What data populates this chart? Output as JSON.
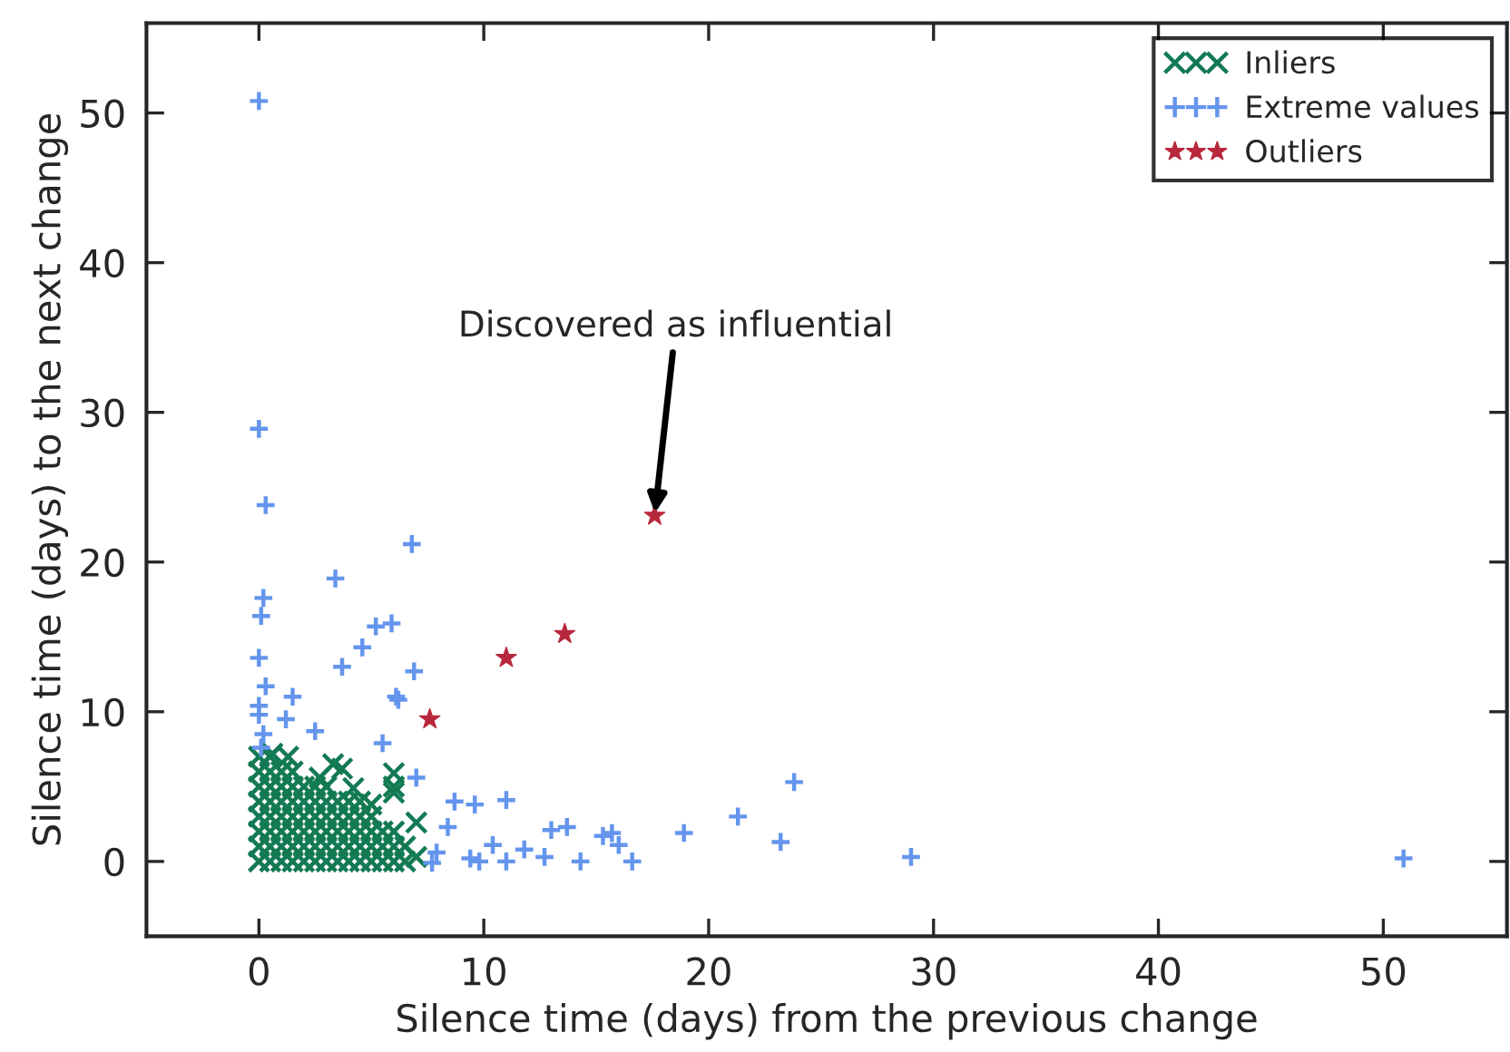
{
  "chart_data": {
    "type": "scatter",
    "xlabel": "Silence time (days) from the previous change",
    "ylabel": "Silence time (days) to the next change",
    "xlim": [
      -5,
      55.5
    ],
    "ylim": [
      -5,
      56
    ],
    "xticks": [
      0,
      10,
      20,
      30,
      40,
      50
    ],
    "yticks": [
      0,
      10,
      20,
      30,
      40,
      50
    ],
    "grid": false,
    "legend": "top right",
    "annotations": [
      {
        "text": "Discovered as influential",
        "x": 17.6,
        "y": 23.1
      }
    ],
    "series": [
      {
        "name": "Inliers",
        "color": "#137a54",
        "marker": "cross",
        "x": [
          0,
          0.5,
          1,
          1.5,
          2,
          2.5,
          3,
          3.5,
          4,
          4.5,
          5,
          5.5,
          6,
          6.5,
          7,
          0,
          0.5,
          1,
          1.5,
          2,
          2.5,
          3,
          3.5,
          4,
          4.5,
          5,
          5.5,
          6,
          6.5,
          0,
          0.5,
          1,
          1.5,
          2,
          2.5,
          3,
          3.5,
          4,
          4.5,
          5,
          5.5,
          6,
          0,
          0.5,
          1,
          1.5,
          2,
          2.5,
          3,
          3.5,
          4,
          4.5,
          5,
          0,
          0.5,
          1,
          1.5,
          2,
          2.5,
          3,
          3.5,
          4,
          4.5,
          0,
          0.5,
          1,
          1.5,
          2,
          2.5,
          3,
          0,
          0.5,
          1,
          1.5,
          0,
          0.5,
          3.3,
          3.7,
          6,
          6,
          6,
          7,
          1.3,
          0.6,
          2.7,
          4.2,
          5
        ],
        "values": [
          0,
          0,
          0,
          0,
          0,
          0,
          0,
          0,
          0,
          0,
          0,
          0,
          0,
          0,
          0.3,
          1,
          1,
          1,
          1,
          1,
          1,
          1,
          1,
          1,
          1,
          1,
          1,
          1,
          1,
          2,
          2,
          2,
          2,
          2,
          2,
          2,
          2,
          2,
          2,
          2,
          2,
          2,
          3,
          3,
          3,
          3,
          3,
          3,
          3,
          3,
          3,
          3,
          3,
          4,
          4,
          4,
          4,
          4,
          4,
          4,
          4,
          4,
          4,
          5,
          5,
          5,
          5,
          5,
          5,
          5,
          6,
          6,
          6,
          6,
          7,
          7,
          6.5,
          6.2,
          5.9,
          5.0,
          4.6,
          2.6,
          7.0,
          7.2,
          5.6,
          4.9,
          3.8
        ]
      },
      {
        "name": "Extreme values",
        "color": "#6495ed",
        "marker": "plus",
        "x": [
          0,
          0,
          0.3,
          6.8,
          3.4,
          0.2,
          0.1,
          5.2,
          5.9,
          4.6,
          0,
          3.7,
          6.9,
          0.3,
          1.5,
          6.1,
          6.2,
          0,
          0,
          1.2,
          2.5,
          0.2,
          5.5,
          0.1,
          7.0,
          8.7,
          9.6,
          11.0,
          8.4,
          13.0,
          13.7,
          15.3,
          15.7,
          10.4,
          11.8,
          12.7,
          14.3,
          7.9,
          7.7,
          9.4,
          9.8,
          11.0,
          16.6,
          16.0,
          23.8,
          21.3,
          18.9,
          23.2,
          29.0,
          50.9
        ],
        "values": [
          50.8,
          28.9,
          23.8,
          21.2,
          18.9,
          17.6,
          16.4,
          15.7,
          15.9,
          14.3,
          13.6,
          13.0,
          12.7,
          11.7,
          11.0,
          11.0,
          10.8,
          10.4,
          9.8,
          9.5,
          8.7,
          8.5,
          7.9,
          7.6,
          5.6,
          4.0,
          3.8,
          4.1,
          2.3,
          2.1,
          2.3,
          1.7,
          1.9,
          1.1,
          0.8,
          0.3,
          0,
          0.6,
          -0.1,
          0.2,
          0,
          0,
          0,
          1.1,
          5.3,
          3.0,
          1.9,
          1.3,
          0.3,
          0.2
        ]
      },
      {
        "name": "Outliers",
        "color": "#b8283c",
        "marker": "star",
        "x": [
          17.6,
          13.6,
          11.0,
          7.6
        ],
        "values": [
          23.1,
          15.2,
          13.6,
          9.5
        ]
      }
    ]
  }
}
